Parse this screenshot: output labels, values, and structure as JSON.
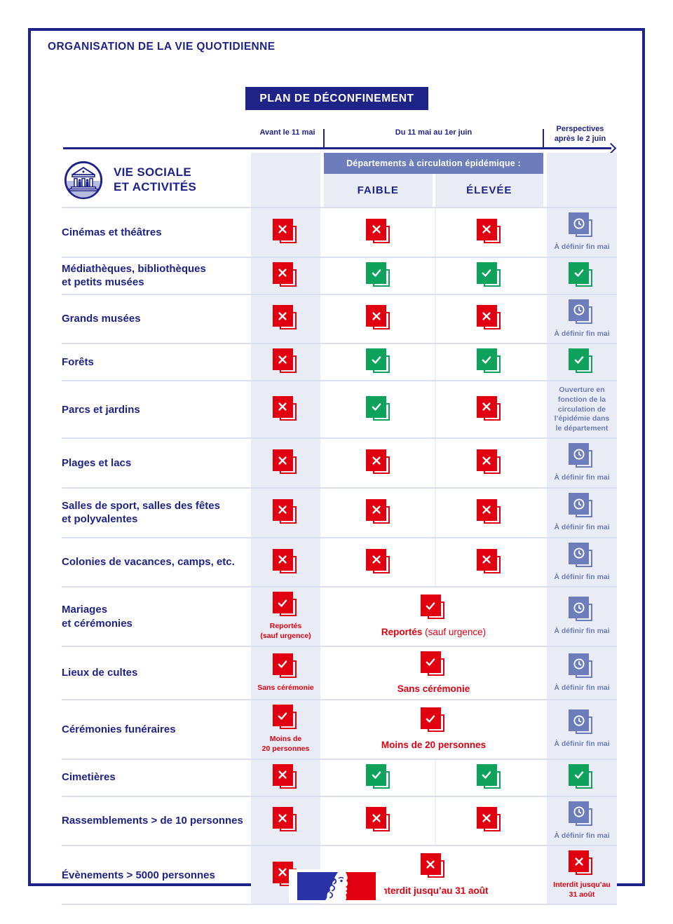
{
  "header": {
    "title": "ORGANISATION DE LA VIE QUOTIDIENNE",
    "badge": "PLAN DE DÉCONFINEMENT"
  },
  "timeline": {
    "before": "Avant le 11 mai",
    "during": "Du 11 mai au 1er juin",
    "after": "Perspectives\naprès le 2 juin"
  },
  "section": {
    "title": "VIE SOCIALE\nET ACTIVITÉS",
    "icon": "classical-building-icon"
  },
  "table": {
    "band_label": "Départements à circulation épidémique :",
    "col_low": "FAIBLE",
    "col_high": "ÉLEVÉE",
    "rows": [
      {
        "label": "Cinémas et théâtres",
        "avant": {
          "icon": "x",
          "color": "red"
        },
        "faible": {
          "icon": "x",
          "color": "red"
        },
        "elevee": {
          "icon": "x",
          "color": "red"
        },
        "perspectives": {
          "icon": "clock",
          "color": "blue",
          "note": {
            "color": "blue",
            "size": "sm",
            "lines": [
              {
                "t": "À définir fin mai",
                "b": true
              }
            ]
          }
        }
      },
      {
        "label": "Médiathèques, bibliothèques\net petits musées",
        "avant": {
          "icon": "x",
          "color": "red"
        },
        "faible": {
          "icon": "check",
          "color": "green"
        },
        "elevee": {
          "icon": "check",
          "color": "green"
        },
        "perspectives": {
          "icon": "check",
          "color": "green"
        }
      },
      {
        "label": "Grands musées",
        "avant": {
          "icon": "x",
          "color": "red"
        },
        "faible": {
          "icon": "x",
          "color": "red"
        },
        "elevee": {
          "icon": "x",
          "color": "red"
        },
        "perspectives": {
          "icon": "clock",
          "color": "blue",
          "note": {
            "color": "blue",
            "size": "sm",
            "lines": [
              {
                "t": "À définir fin mai",
                "b": true
              }
            ]
          }
        }
      },
      {
        "label": "Forêts",
        "avant": {
          "icon": "x",
          "color": "red"
        },
        "faible": {
          "icon": "check",
          "color": "green"
        },
        "elevee": {
          "icon": "check",
          "color": "green"
        },
        "perspectives": {
          "icon": "check",
          "color": "green"
        }
      },
      {
        "label": "Parcs et jardins",
        "avant": {
          "icon": "x",
          "color": "red"
        },
        "faible": {
          "icon": "check",
          "color": "green"
        },
        "elevee": {
          "icon": "x",
          "color": "red"
        },
        "perspectives": {
          "note": {
            "color": "blue",
            "size": "sm",
            "lines": [
              {
                "t": "Ouverture en",
                "b": true
              },
              {
                "t": "fonction de la",
                "b": true
              },
              {
                "t": "circulation de",
                "b": true
              },
              {
                "t": "l’épidémie dans",
                "b": true
              },
              {
                "t": "le département",
                "b": true
              }
            ]
          }
        }
      },
      {
        "label": "Plages et lacs",
        "avant": {
          "icon": "x",
          "color": "red"
        },
        "faible": {
          "icon": "x",
          "color": "red"
        },
        "elevee": {
          "icon": "x",
          "color": "red"
        },
        "perspectives": {
          "icon": "clock",
          "color": "blue",
          "note": {
            "color": "blue",
            "size": "sm",
            "lines": [
              {
                "t": "À définir fin mai",
                "b": true
              }
            ]
          }
        }
      },
      {
        "label": "Salles de sport, salles des fêtes\net polyvalentes",
        "avant": {
          "icon": "x",
          "color": "red"
        },
        "faible": {
          "icon": "x",
          "color": "red"
        },
        "elevee": {
          "icon": "x",
          "color": "red"
        },
        "perspectives": {
          "icon": "clock",
          "color": "blue",
          "note": {
            "color": "blue",
            "size": "sm",
            "lines": [
              {
                "t": "À définir fin mai",
                "b": true
              }
            ]
          }
        }
      },
      {
        "label": "Colonies de vacances, camps, etc.",
        "avant": {
          "icon": "x",
          "color": "red"
        },
        "faible": {
          "icon": "x",
          "color": "red"
        },
        "elevee": {
          "icon": "x",
          "color": "red"
        },
        "perspectives": {
          "icon": "clock",
          "color": "blue",
          "note": {
            "color": "blue",
            "size": "sm",
            "lines": [
              {
                "t": "À définir fin mai",
                "b": true
              }
            ]
          }
        }
      },
      {
        "label": "Mariages\net cérémonies",
        "avant": {
          "icon": "check",
          "color": "red",
          "note": {
            "color": "red",
            "size": "sm",
            "lines": [
              {
                "t": "Reportés",
                "b": true
              },
              {
                "t": "(sauf urgence)",
                "b": true
              }
            ]
          }
        },
        "merged": {
          "icon": "check",
          "color": "red",
          "note": {
            "color": "red",
            "size": "md",
            "inline": true,
            "lines": [
              {
                "t": "Reportés",
                "b": true
              },
              {
                "t": " (sauf urgence)",
                "b": false
              }
            ]
          }
        },
        "perspectives": {
          "icon": "clock",
          "color": "blue",
          "note": {
            "color": "blue",
            "size": "sm",
            "lines": [
              {
                "t": "À définir fin mai",
                "b": true
              }
            ]
          }
        }
      },
      {
        "label": "Lieux de cultes",
        "avant": {
          "icon": "check",
          "color": "red",
          "note": {
            "color": "red",
            "size": "sm",
            "lines": [
              {
                "t": "Sans cérémonie",
                "b": true
              }
            ]
          }
        },
        "merged": {
          "icon": "check",
          "color": "red",
          "note": {
            "color": "red",
            "size": "md",
            "lines": [
              {
                "t": "Sans cérémonie",
                "b": true
              }
            ]
          }
        },
        "perspectives": {
          "icon": "clock",
          "color": "blue",
          "note": {
            "color": "blue",
            "size": "sm",
            "lines": [
              {
                "t": "À définir fin mai",
                "b": true
              }
            ]
          }
        }
      },
      {
        "label": "Cérémonies funéraires",
        "avant": {
          "icon": "check",
          "color": "red",
          "note": {
            "color": "red",
            "size": "sm",
            "lines": [
              {
                "t": "Moins de",
                "b": true
              },
              {
                "t": "20 personnes",
                "b": true
              }
            ]
          }
        },
        "merged": {
          "icon": "check",
          "color": "red",
          "note": {
            "color": "red",
            "size": "md",
            "lines": [
              {
                "t": "Moins de 20 personnes",
                "b": true
              }
            ]
          }
        },
        "perspectives": {
          "icon": "clock",
          "color": "blue",
          "note": {
            "color": "blue",
            "size": "sm",
            "lines": [
              {
                "t": "À définir fin mai",
                "b": true
              }
            ]
          }
        }
      },
      {
        "label": "Cimetières",
        "avant": {
          "icon": "x",
          "color": "red"
        },
        "faible": {
          "icon": "check",
          "color": "green"
        },
        "elevee": {
          "icon": "check",
          "color": "green"
        },
        "perspectives": {
          "icon": "check",
          "color": "green"
        }
      },
      {
        "label": "Rassemblements > de 10 personnes",
        "avant": {
          "icon": "x",
          "color": "red"
        },
        "faible": {
          "icon": "x",
          "color": "red"
        },
        "elevee": {
          "icon": "x",
          "color": "red"
        },
        "perspectives": {
          "icon": "clock",
          "color": "blue",
          "note": {
            "color": "blue",
            "size": "sm",
            "lines": [
              {
                "t": "À définir fin mai",
                "b": true
              }
            ]
          }
        }
      },
      {
        "label": "Évènements > 5000 personnes",
        "avant": {
          "icon": "x",
          "color": "red"
        },
        "merged": {
          "icon": "x",
          "color": "red",
          "note": {
            "color": "red",
            "size": "md",
            "lines": [
              {
                "t": "Interdit jusqu’au 31 août",
                "b": true
              }
            ]
          }
        },
        "perspectives": {
          "icon": "x",
          "color": "red",
          "note": {
            "color": "red",
            "size": "sm",
            "lines": [
              {
                "t": "Interdit jusqu’au",
                "b": true
              },
              {
                "t": "31 août",
                "b": true
              }
            ]
          }
        }
      }
    ]
  },
  "footer": {
    "logo": "french-republic-marianne-logo"
  },
  "theme": {
    "navy": "#1e2387",
    "band_blue": "#6d7cba",
    "lavender": "#e9ecf5",
    "separator": "#dbe0f0",
    "red": "#e1000f",
    "green": "#0ea25c",
    "logo_blue": "#2a33a5",
    "logo_red": "#e1000f"
  }
}
